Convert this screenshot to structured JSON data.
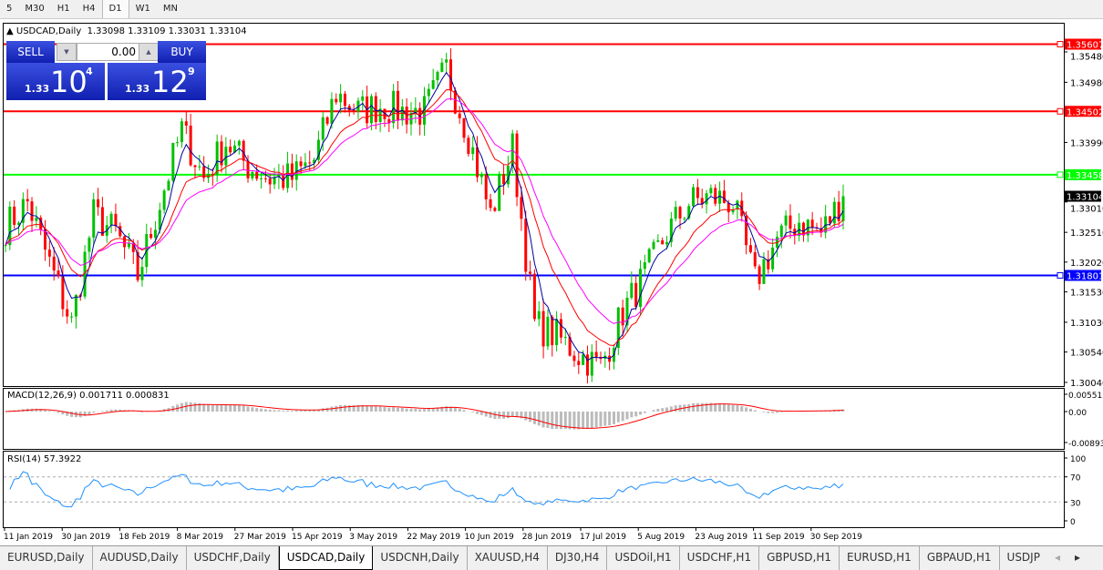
{
  "timeframes": [
    "5",
    "M30",
    "H1",
    "H4",
    "D1",
    "W1",
    "MN"
  ],
  "active_timeframe": "D1",
  "chart": {
    "symbol_info": "USDCAD,Daily",
    "ohlc": "1.33098 1.33109 1.33031 1.33104"
  },
  "trade_panel": {
    "sell_label": "SELL",
    "buy_label": "BUY",
    "volume": "0.00",
    "sell_prefix": "1.33",
    "sell_big": "10",
    "sell_sup": "4",
    "buy_prefix": "1.33",
    "buy_big": "12",
    "buy_sup": "9"
  },
  "chart_data": {
    "type": "candlestick",
    "price_axis_ticks": [
      "1.35480",
      "1.34980",
      "1.33990",
      "1.33010",
      "1.32510",
      "1.32020",
      "1.31530",
      "1.31030",
      "1.30540",
      "1.30040"
    ],
    "date_ticks": [
      "11 Jan 2019",
      "30 Jan 2019",
      "18 Feb 2019",
      "8 Mar 2019",
      "27 Mar 2019",
      "15 Apr 2019",
      "3 May 2019",
      "22 May 2019",
      "10 Jun 2019",
      "28 Jun 2019",
      "17 Jul 2019",
      "5 Aug 2019",
      "23 Aug 2019",
      "11 Sep 2019",
      "30 Sep 2019"
    ],
    "weekly_closes": [
      1.326,
      1.33,
      1.32,
      1.31,
      1.328,
      1.325,
      1.318,
      1.33,
      1.342,
      1.334,
      1.34,
      1.336,
      1.334,
      1.334,
      1.337,
      1.348,
      1.345,
      1.346,
      1.345,
      1.345,
      1.352,
      1.341,
      1.328,
      1.339,
      1.31,
      1.308,
      1.305,
      1.303,
      1.312,
      1.318,
      1.325,
      1.33,
      1.331,
      1.33,
      1.317,
      1.324,
      1.327,
      1.325,
      1.331
    ],
    "horizontal_lines": [
      {
        "price": "1.35607",
        "color": "#ff0000"
      },
      {
        "price": "1.34502",
        "color": "#ff0000"
      },
      {
        "price": "1.33458",
        "color": "#00ff00"
      },
      {
        "price": "1.31801",
        "color": "#0000ff"
      }
    ],
    "current_price": "1.33104",
    "colors": {
      "bull": "#00c000",
      "bear": "#ff0000",
      "ma_fast": "#0000a0",
      "ma_mid": "#ff0000",
      "ma_slow": "#ff00ff"
    },
    "macd": {
      "label": "MACD(12,26,9) 0.001711 0.000831",
      "ticks": [
        "0.005512",
        "0.00",
        "-0.008938"
      ]
    },
    "rsi": {
      "label": "RSI(14) 57.3922",
      "ticks": [
        "100",
        "70",
        "30",
        "0"
      ],
      "color": "#1e90ff"
    }
  },
  "tabs": [
    "EURUSD,Daily",
    "AUDUSD,Daily",
    "USDCHF,Daily",
    "USDCAD,Daily",
    "USDCNH,Daily",
    "XAUUSD,H4",
    "DJ30,H4",
    "USDOil,H1",
    "USDCHF,H1",
    "GBPUSD,H1",
    "EURUSD,H1",
    "GBPAUD,H1",
    "USDJP"
  ],
  "active_tab": "USDCAD,Daily"
}
